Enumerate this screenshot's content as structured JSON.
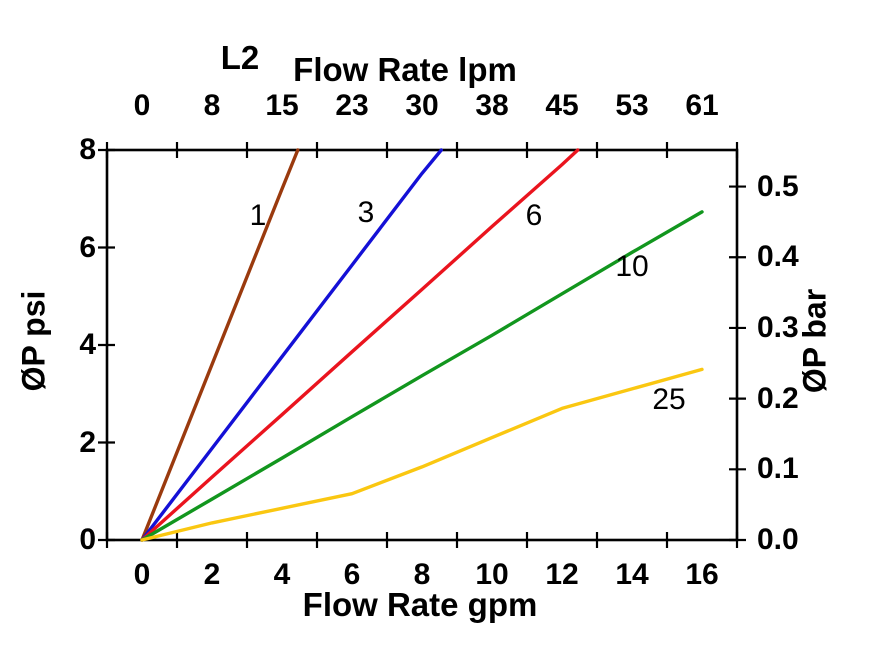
{
  "page": {
    "background": "#ffffff",
    "text_color": "#000000"
  },
  "chart_data": {
    "type": "line",
    "title": "L2",
    "grid": false,
    "legend": "inline-curve-labels",
    "axes": {
      "top": {
        "label": "Flow Rate lpm",
        "tick_labels": [
          "0",
          "8",
          "15",
          "23",
          "30",
          "38",
          "45",
          "53",
          "61"
        ]
      },
      "bottom": {
        "label": "Flow Rate gpm",
        "tick_labels": [
          "0",
          "2",
          "4",
          "6",
          "8",
          "10",
          "12",
          "14",
          "16"
        ],
        "range": [
          0,
          16
        ]
      },
      "left": {
        "label": "ØP psi",
        "tick_labels": [
          "0",
          "2",
          "4",
          "6",
          "8"
        ],
        "range": [
          0,
          8
        ]
      },
      "right": {
        "label": "ØP bar",
        "tick_labels": [
          "0.0",
          "0.1",
          "0.2",
          "0.3",
          "0.4",
          "0.5"
        ],
        "psi_per_bar": 14.5
      }
    },
    "series": [
      {
        "name": "1",
        "color": "#9a3a0e",
        "label_at": [
          3.3,
          6.65
        ],
        "points": [
          [
            0,
            0
          ],
          [
            2,
            3.6
          ],
          [
            4,
            7.2
          ],
          [
            4.45,
            8
          ]
        ]
      },
      {
        "name": "3",
        "color": "#1410d6",
        "label_at": [
          6.4,
          6.7
        ],
        "points": [
          [
            0,
            0
          ],
          [
            2,
            1.88
          ],
          [
            4,
            3.76
          ],
          [
            6,
            5.64
          ],
          [
            8,
            7.52
          ],
          [
            8.55,
            8
          ]
        ]
      },
      {
        "name": "6",
        "color": "#ea141e",
        "label_at": [
          11.2,
          6.65
        ],
        "points": [
          [
            0,
            0
          ],
          [
            2,
            1.29
          ],
          [
            4,
            2.57
          ],
          [
            6,
            3.86
          ],
          [
            8,
            5.14
          ],
          [
            10,
            6.43
          ],
          [
            12,
            7.7
          ],
          [
            12.45,
            8
          ]
        ]
      },
      {
        "name": "10",
        "color": "#12961e",
        "label_at": [
          14.0,
          5.6
        ],
        "points": [
          [
            0,
            0
          ],
          [
            2,
            0.84
          ],
          [
            4,
            1.68
          ],
          [
            6,
            2.53
          ],
          [
            8,
            3.37
          ],
          [
            10,
            4.2
          ],
          [
            12,
            5.05
          ],
          [
            14,
            5.9
          ],
          [
            16,
            6.73
          ]
        ]
      },
      {
        "name": "25",
        "color": "#fac711",
        "label_at": [
          15.05,
          2.87
        ],
        "points": [
          [
            0,
            0
          ],
          [
            2,
            0.35
          ],
          [
            4,
            0.65
          ],
          [
            6,
            0.95
          ],
          [
            8,
            1.5
          ],
          [
            10,
            2.1
          ],
          [
            12,
            2.7
          ],
          [
            14,
            3.1
          ],
          [
            16,
            3.5
          ]
        ]
      }
    ]
  }
}
